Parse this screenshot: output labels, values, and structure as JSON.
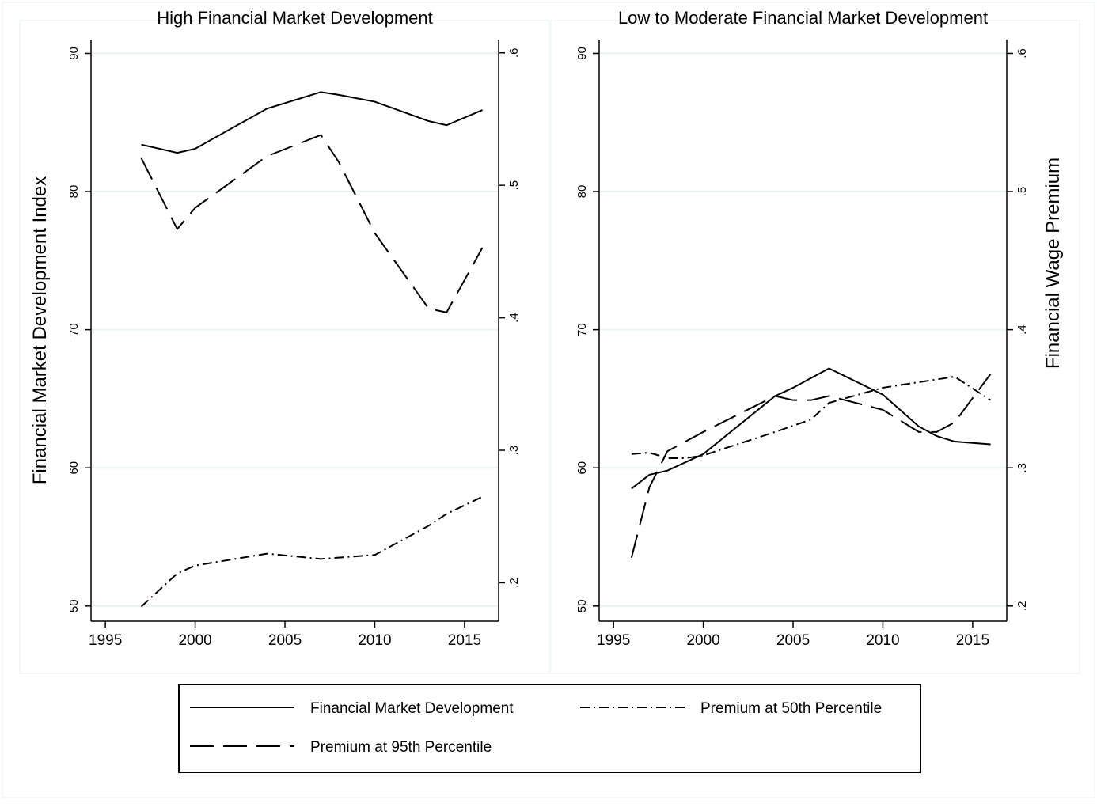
{
  "chart_data": [
    {
      "type": "line",
      "title": "High Financial Market Development",
      "ylabel": "Financial Market Development Index",
      "xlim": [
        1994.2,
        2016.9
      ],
      "xticks": [
        1995,
        2000,
        2005,
        2010,
        2015
      ],
      "ylim": [
        48.9,
        91
      ],
      "yticks": [
        50,
        60,
        70,
        80,
        90
      ],
      "y2lim": [
        0.171,
        0.61
      ],
      "y2ticks": [
        {
          "value": 0.2,
          "label": ".2"
        },
        {
          "value": 0.3,
          "label": ".3"
        },
        {
          "value": 0.4,
          "label": ".4"
        },
        {
          "value": 0.5,
          "label": ".5"
        },
        {
          "value": 0.6,
          "label": ".6"
        }
      ],
      "grid": true,
      "legend": "bottom",
      "series": [
        {
          "name": "Financial Market Development",
          "color": "#000000",
          "line_style": "solid",
          "axis": "y",
          "x": [
            1997,
            1999,
            2000,
            2004,
            2007,
            2008,
            2010,
            2013,
            2014,
            2016
          ],
          "values": [
            83.4,
            82.8,
            83.1,
            86.0,
            87.2,
            87.0,
            86.5,
            85.1,
            84.8,
            85.9
          ]
        },
        {
          "name": "Premium at 50th Percentile",
          "color": "#000000",
          "line_style": "dashdot",
          "axis": "y2",
          "x": [
            1997,
            1999,
            2000,
            2004,
            2007,
            2008,
            2010,
            2013,
            2014,
            2016
          ],
          "values": [
            0.182,
            0.207,
            0.213,
            0.222,
            0.218,
            0.219,
            0.221,
            0.243,
            0.252,
            0.265
          ]
        },
        {
          "name": "Premium at 95th Percentile",
          "color": "#000000",
          "line_style": "dash",
          "axis": "y2",
          "x": [
            1997,
            1999,
            2000,
            2004,
            2007,
            2008,
            2010,
            2013,
            2014,
            2016
          ],
          "values": [
            0.5205,
            0.467,
            0.483,
            0.522,
            0.538,
            0.5175,
            0.464,
            0.407,
            0.404,
            0.453
          ]
        }
      ]
    },
    {
      "type": "line",
      "title": "Low to Moderate Financial Market Development",
      "y2label": "Financial Wage Premium",
      "xlim": [
        1994.2,
        2016.9
      ],
      "xticks": [
        1995,
        2000,
        2005,
        2010,
        2015
      ],
      "ylim": [
        48.9,
        91
      ],
      "yticks": [
        50,
        60,
        70,
        80,
        90
      ],
      "y2lim": [
        0.189,
        0.61
      ],
      "y2ticks": [
        {
          "value": 0.2,
          "label": ".2"
        },
        {
          "value": 0.3,
          "label": ".3"
        },
        {
          "value": 0.4,
          "label": ".4"
        },
        {
          "value": 0.5,
          "label": ".5"
        },
        {
          "value": 0.6,
          "label": ".6"
        }
      ],
      "grid": true,
      "series": [
        {
          "color": "#000000",
          "line_style": "solid",
          "axis": "y",
          "x": [
            1996,
            1997,
            1998,
            2000,
            2004,
            2005,
            2006,
            2007,
            2010,
            2012,
            2013,
            2014,
            2016
          ],
          "values": [
            58.5,
            59.5,
            59.8,
            61.0,
            65.2,
            65.8,
            66.5,
            67.2,
            65.3,
            63.0,
            62.3,
            61.9,
            61.7
          ]
        },
        {
          "color": "#000000",
          "line_style": "dashdot",
          "axis": "y2",
          "x": [
            1996,
            1997,
            1998,
            1999,
            2000,
            2004,
            2006,
            2007,
            2010,
            2012,
            2014,
            2016
          ],
          "values": [
            0.31,
            0.311,
            0.307,
            0.307,
            0.309,
            0.326,
            0.335,
            0.347,
            0.358,
            0.362,
            0.366,
            0.349
          ]
        },
        {
          "color": "#000000",
          "line_style": "dash",
          "axis": "y2",
          "x": [
            1996,
            1997,
            1998,
            2000,
            2004,
            2005,
            2006,
            2007,
            2010,
            2012,
            2013,
            2014,
            2016
          ],
          "values": [
            0.235,
            0.286,
            0.312,
            0.326,
            0.352,
            0.349,
            0.349,
            0.352,
            0.342,
            0.326,
            0.326,
            0.333,
            0.368
          ]
        }
      ]
    }
  ]
}
